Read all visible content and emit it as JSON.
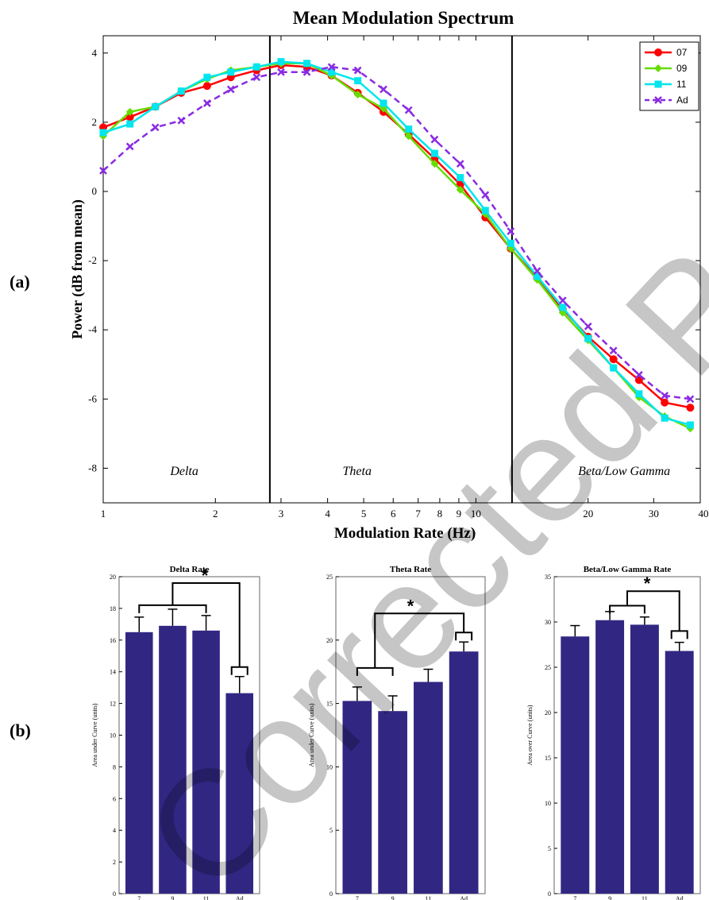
{
  "panel_labels": [
    "(a)",
    "(b)"
  ],
  "watermark": "Corrected Proof",
  "chart_data": [
    {
      "type": "line",
      "title": "Mean Modulation Spectrum",
      "xlabel": "Modulation Rate (Hz)",
      "ylabel": "Power (dB from mean)",
      "xscale": "log",
      "xlim": [
        1,
        40
      ],
      "ylim": [
        -9,
        4.5
      ],
      "xticks": [
        1,
        2,
        3,
        4,
        5,
        6,
        7,
        8,
        9,
        10,
        20,
        30,
        40
      ],
      "xtick_labels": [
        "1",
        "2",
        "3",
        "4",
        "5",
        "6",
        "7",
        "8",
        "9",
        "10",
        "20",
        "30",
        "40"
      ],
      "yticks": [
        4,
        2,
        0,
        -2,
        -4,
        -6,
        -8
      ],
      "grid": false,
      "legend_position": "top-right",
      "vlines": [
        2.8,
        12.5
      ],
      "regions": [
        {
          "label": "Delta",
          "x": 1.65,
          "y": -8.2
        },
        {
          "label": "Theta",
          "x": 4.8,
          "y": -8.2
        },
        {
          "label": "Beta/Low Gamma",
          "x": 25,
          "y": -8.2
        }
      ],
      "x": [
        1,
        1.18,
        1.38,
        1.62,
        1.9,
        2.2,
        2.58,
        3.0,
        3.52,
        4.1,
        4.82,
        5.65,
        6.6,
        7.75,
        9.08,
        10.6,
        12.4,
        14.6,
        17.1,
        20,
        23.4,
        27.4,
        32.1,
        37.6
      ],
      "series": [
        {
          "name": "07",
          "color": "#ff0000",
          "marker": "circle",
          "dash": "solid",
          "values": [
            1.85,
            2.15,
            2.45,
            2.85,
            3.05,
            3.3,
            3.5,
            3.65,
            3.6,
            3.35,
            2.85,
            2.3,
            1.65,
            0.95,
            0.2,
            -0.75,
            -1.65,
            -2.5,
            -3.4,
            -4.2,
            -4.85,
            -5.45,
            -6.1,
            -6.25
          ]
        },
        {
          "name": "09",
          "color": "#66dd00",
          "marker": "diamond",
          "dash": "solid",
          "values": [
            1.6,
            2.3,
            2.45,
            2.9,
            3.25,
            3.5,
            3.6,
            3.7,
            3.7,
            3.35,
            2.8,
            2.4,
            1.6,
            0.8,
            0.05,
            -0.65,
            -1.65,
            -2.55,
            -3.5,
            -4.3,
            -5.1,
            -5.95,
            -6.5,
            -6.85
          ]
        },
        {
          "name": "11",
          "color": "#00e5ee",
          "marker": "square",
          "dash": "solid",
          "values": [
            1.7,
            1.95,
            2.45,
            2.9,
            3.3,
            3.45,
            3.6,
            3.75,
            3.7,
            3.45,
            3.2,
            2.55,
            1.8,
            1.1,
            0.4,
            -0.55,
            -1.5,
            -2.45,
            -3.35,
            -4.25,
            -5.1,
            -5.85,
            -6.55,
            -6.75
          ]
        },
        {
          "name": "Ad",
          "color": "#8a2be2",
          "marker": "x",
          "dash": "dashed",
          "values": [
            0.6,
            1.3,
            1.85,
            2.05,
            2.55,
            2.95,
            3.3,
            3.45,
            3.45,
            3.6,
            3.5,
            2.95,
            2.35,
            1.5,
            0.8,
            -0.1,
            -1.15,
            -2.3,
            -3.15,
            -3.9,
            -4.6,
            -5.3,
            -5.9,
            -6.0
          ]
        }
      ]
    },
    {
      "type": "bar",
      "title": "Delta Rate",
      "ylabel": "Area under Curve (units)",
      "ylim": [
        0,
        20
      ],
      "yticks": [
        0,
        2,
        4,
        6,
        8,
        10,
        12,
        14,
        16,
        18,
        20
      ],
      "categories": [
        "7",
        "9",
        "11",
        "Ad"
      ],
      "values": [
        16.5,
        16.9,
        16.6,
        12.65
      ],
      "errors": [
        0.95,
        1.05,
        0.95,
        1.05
      ],
      "bar_color": "#312783",
      "significance": "*"
    },
    {
      "type": "bar",
      "title": "Theta Rate",
      "ylabel": "Area under Curve (units)",
      "ylim": [
        0,
        25
      ],
      "yticks": [
        0,
        5,
        10,
        15,
        20,
        25
      ],
      "categories": [
        "7",
        "9",
        "11",
        "Ad"
      ],
      "values": [
        15.2,
        14.4,
        16.7,
        19.1
      ],
      "errors": [
        1.1,
        1.2,
        1.0,
        0.75
      ],
      "bar_color": "#312783",
      "significance": "*"
    },
    {
      "type": "bar",
      "title": "Beta/Low Gamma Rate",
      "ylabel": "Area over Curve (units)",
      "ylim": [
        0,
        35
      ],
      "yticks": [
        0,
        5,
        10,
        15,
        20,
        25,
        30,
        35
      ],
      "categories": [
        "7",
        "9",
        "11",
        "Ad"
      ],
      "values": [
        28.4,
        30.2,
        29.7,
        26.8
      ],
      "errors": [
        1.2,
        0.95,
        0.85,
        0.95
      ],
      "bar_color": "#312783",
      "significance": "*"
    }
  ]
}
